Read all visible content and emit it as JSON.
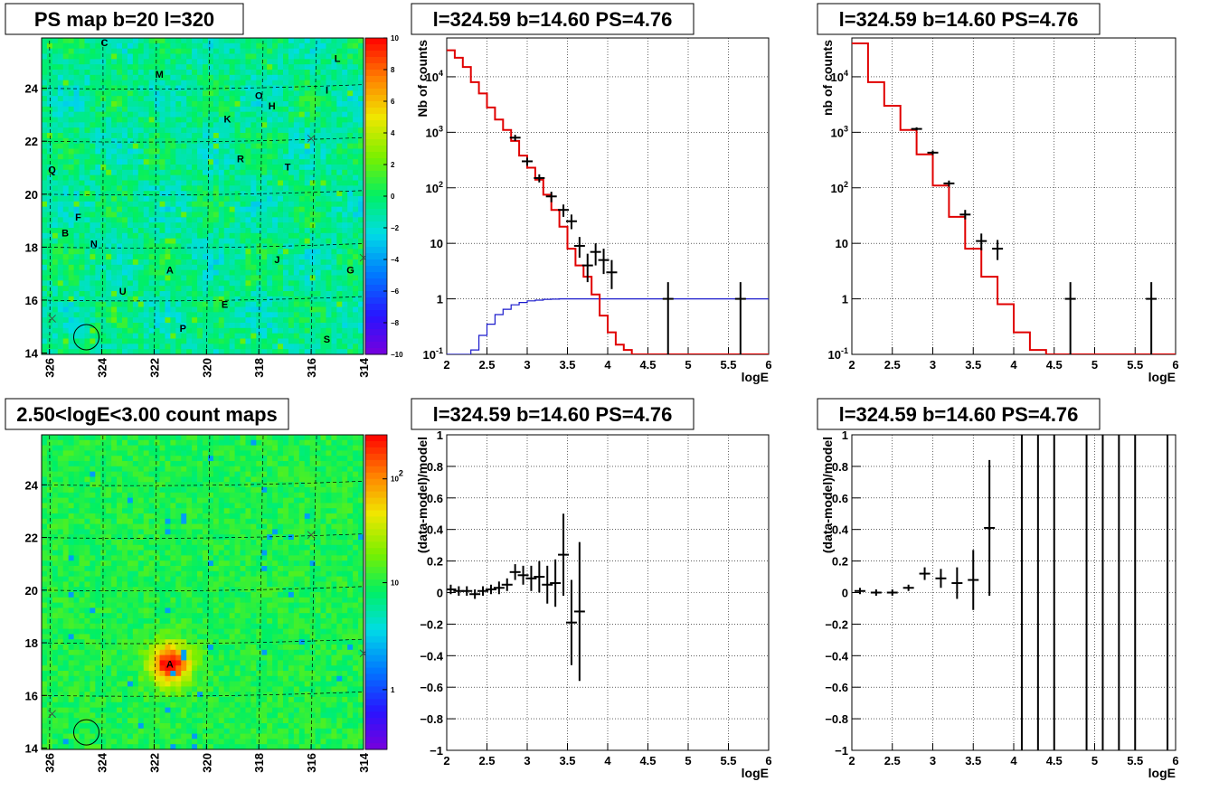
{
  "chart_data": [
    {
      "type": "heatmap",
      "title": "PS map b=20 l=320",
      "x_ticks": [
        "326",
        "324",
        "322",
        "320",
        "318",
        "316",
        "314"
      ],
      "y_ticks": [
        "14",
        "16",
        "18",
        "20",
        "22",
        "24"
      ],
      "zlim": [
        -10,
        10
      ],
      "colorbar_ticks": [
        "10",
        "8",
        "6",
        "4",
        "2",
        "0",
        "-2",
        "-4",
        "-6",
        "-8",
        "-10"
      ],
      "sources": [
        {
          "label": "C",
          "l": 323.9,
          "b": 25.6
        },
        {
          "label": "M",
          "l": 321.8,
          "b": 24.4
        },
        {
          "label": "L",
          "l": 315.0,
          "b": 25.0
        },
        {
          "label": "I",
          "l": 315.4,
          "b": 23.8
        },
        {
          "label": "O",
          "l": 318.0,
          "b": 23.6
        },
        {
          "label": "H",
          "l": 317.5,
          "b": 23.2
        },
        {
          "label": "K",
          "l": 319.2,
          "b": 22.7
        },
        {
          "label": "R",
          "l": 318.7,
          "b": 21.2
        },
        {
          "label": "T",
          "l": 316.9,
          "b": 20.9
        },
        {
          "label": "Q",
          "l": 325.9,
          "b": 20.8
        },
        {
          "label": "F",
          "l": 324.9,
          "b": 19.0
        },
        {
          "label": "B",
          "l": 325.4,
          "b": 18.4
        },
        {
          "label": "N",
          "l": 324.3,
          "b": 18.0
        },
        {
          "label": "J",
          "l": 317.3,
          "b": 17.4
        },
        {
          "label": "G",
          "l": 314.5,
          "b": 17.0
        },
        {
          "label": "A",
          "l": 321.4,
          "b": 17.0
        },
        {
          "label": "U",
          "l": 323.2,
          "b": 16.2
        },
        {
          "label": "E",
          "l": 319.3,
          "b": 15.7
        },
        {
          "label": "P",
          "l": 320.9,
          "b": 14.8
        },
        {
          "label": "S",
          "l": 315.4,
          "b": 14.4
        }
      ]
    },
    {
      "type": "line",
      "title": "l=324.59 b=14.60 PS=4.76",
      "xlabel": "logE",
      "ylabel": "Nb of counts",
      "yscale": "log",
      "xlim": [
        2,
        6
      ],
      "ylim": [
        0.1,
        50000
      ],
      "x_ticks": [
        "2",
        "2.5",
        "3",
        "3.5",
        "4",
        "4.5",
        "5",
        "5.5",
        "6"
      ],
      "y_ticks": [
        "10^-1",
        "1",
        "10",
        "10^2",
        "10^3",
        "10^4"
      ],
      "model_red": {
        "edges": [
          2.0,
          2.1,
          2.2,
          2.3,
          2.4,
          2.5,
          2.6,
          2.7,
          2.8,
          2.9,
          3.0,
          3.1,
          3.2,
          3.3,
          3.4,
          3.5,
          3.6,
          3.7,
          3.8,
          3.9,
          4.0,
          4.1,
          4.2,
          4.3,
          6.0
        ],
        "values": [
          30000,
          22000,
          15000,
          8000,
          5000,
          2800,
          1700,
          1100,
          700,
          380,
          230,
          140,
          75,
          40,
          20,
          8,
          4,
          2.5,
          1.2,
          0.5,
          0.25,
          0.15,
          0.12,
          0.1
        ]
      },
      "model_blue": {
        "edges": [
          2.0,
          2.3,
          2.4,
          2.5,
          2.6,
          2.7,
          2.8,
          2.9,
          3.0,
          3.1,
          3.2,
          3.3,
          3.4,
          3.5,
          6.0
        ],
        "values": [
          0.1,
          0.12,
          0.22,
          0.35,
          0.52,
          0.65,
          0.78,
          0.86,
          0.92,
          0.95,
          0.98,
          0.99,
          1.0,
          1.0
        ]
      },
      "data_points": [
        {
          "x": 2.85,
          "y": 800,
          "ylo": 700,
          "yhi": 900
        },
        {
          "x": 3.0,
          "y": 300,
          "ylo": 250,
          "yhi": 350
        },
        {
          "x": 3.15,
          "y": 150,
          "ylo": 125,
          "yhi": 175
        },
        {
          "x": 3.3,
          "y": 70,
          "ylo": 55,
          "yhi": 85
        },
        {
          "x": 3.45,
          "y": 40,
          "ylo": 30,
          "yhi": 50
        },
        {
          "x": 3.55,
          "y": 25,
          "ylo": 18,
          "yhi": 33
        },
        {
          "x": 3.65,
          "y": 9,
          "ylo": 5.5,
          "yhi": 13
        },
        {
          "x": 3.75,
          "y": 4,
          "ylo": 2,
          "yhi": 6.5
        },
        {
          "x": 3.85,
          "y": 7,
          "ylo": 4,
          "yhi": 10
        },
        {
          "x": 3.95,
          "y": 5,
          "ylo": 2.8,
          "yhi": 8
        },
        {
          "x": 4.05,
          "y": 3,
          "ylo": 1.5,
          "yhi": 5
        },
        {
          "x": 4.75,
          "y": 1,
          "ylo": 0.1,
          "yhi": 2
        },
        {
          "x": 5.65,
          "y": 1,
          "ylo": 0.1,
          "yhi": 2
        }
      ]
    },
    {
      "type": "line",
      "title": "l=324.59 b=14.60 PS=4.76",
      "xlabel": "logE",
      "ylabel": "nb of counts",
      "yscale": "log",
      "xlim": [
        2,
        6
      ],
      "ylim": [
        0.1,
        50000
      ],
      "x_ticks": [
        "2",
        "2.5",
        "3",
        "3.5",
        "4",
        "4.5",
        "5",
        "5.5",
        "6"
      ],
      "y_ticks": [
        "10^-1",
        "1",
        "10",
        "10^2",
        "10^3",
        "10^4"
      ],
      "model_red": {
        "edges": [
          2.0,
          2.2,
          2.4,
          2.6,
          2.8,
          3.0,
          3.2,
          3.4,
          3.6,
          3.8,
          4.0,
          4.2,
          4.4,
          6.0
        ],
        "values": [
          40000,
          8000,
          3000,
          1100,
          400,
          110,
          30,
          8,
          2.5,
          0.8,
          0.25,
          0.12,
          0.1
        ]
      },
      "data_points": [
        {
          "x": 2.8,
          "y": 1150,
          "ylo": 1080,
          "yhi": 1230
        },
        {
          "x": 3.0,
          "y": 430,
          "ylo": 390,
          "yhi": 470
        },
        {
          "x": 3.2,
          "y": 120,
          "ylo": 105,
          "yhi": 135
        },
        {
          "x": 3.4,
          "y": 33,
          "ylo": 27,
          "yhi": 40
        },
        {
          "x": 3.6,
          "y": 11,
          "ylo": 7.5,
          "yhi": 15
        },
        {
          "x": 3.8,
          "y": 8,
          "ylo": 5,
          "yhi": 11.5
        },
        {
          "x": 4.7,
          "y": 1,
          "ylo": 0.1,
          "yhi": 2
        },
        {
          "x": 5.7,
          "y": 1,
          "ylo": 0.1,
          "yhi": 2
        }
      ]
    },
    {
      "type": "heatmap",
      "title": "2.50<logE<3.00 count maps",
      "x_ticks": [
        "326",
        "324",
        "322",
        "320",
        "318",
        "316",
        "314"
      ],
      "y_ticks": [
        "14",
        "16",
        "18",
        "20",
        "22",
        "24"
      ],
      "zscale": "log",
      "colorbar_ticks": [
        "10^2",
        "10",
        "1"
      ],
      "hotspot": {
        "label": "A",
        "l": 321.4,
        "b": 17.2
      }
    },
    {
      "type": "scatter",
      "title": "l=324.59 b=14.60 PS=4.76",
      "xlabel": "logE",
      "ylabel": "(data-model)/model",
      "xlim": [
        2,
        6
      ],
      "ylim": [
        -1,
        1
      ],
      "x_ticks": [
        "2",
        "2.5",
        "3",
        "3.5",
        "4",
        "4.5",
        "5",
        "5.5",
        "6"
      ],
      "y_ticks": [
        "-1",
        "-0.8",
        "-0.6",
        "-0.4",
        "-0.2",
        "0",
        "0.2",
        "0.4",
        "0.6",
        "0.8",
        "1"
      ],
      "data_points": [
        {
          "x": 2.05,
          "y": 0.02,
          "err": 0.03
        },
        {
          "x": 2.15,
          "y": 0.01,
          "err": 0.03
        },
        {
          "x": 2.25,
          "y": 0.01,
          "err": 0.03
        },
        {
          "x": 2.35,
          "y": -0.01,
          "err": 0.03
        },
        {
          "x": 2.45,
          "y": 0.01,
          "err": 0.03
        },
        {
          "x": 2.55,
          "y": 0.02,
          "err": 0.03
        },
        {
          "x": 2.65,
          "y": 0.03,
          "err": 0.04
        },
        {
          "x": 2.75,
          "y": 0.05,
          "err": 0.04
        },
        {
          "x": 2.85,
          "y": 0.13,
          "err": 0.05
        },
        {
          "x": 2.95,
          "y": 0.11,
          "err": 0.06
        },
        {
          "x": 3.05,
          "y": 0.09,
          "err": 0.08
        },
        {
          "x": 3.15,
          "y": 0.1,
          "err": 0.1
        },
        {
          "x": 3.25,
          "y": 0.05,
          "err": 0.12
        },
        {
          "x": 3.35,
          "y": 0.06,
          "err": 0.15
        },
        {
          "x": 3.45,
          "y": 0.24,
          "err": 0.26
        },
        {
          "x": 3.55,
          "y": -0.19,
          "err": 0.27
        },
        {
          "x": 3.65,
          "y": -0.12,
          "err": 0.44
        }
      ]
    },
    {
      "type": "scatter",
      "title": "l=324.59 b=14.60 PS=4.76",
      "xlabel": "logE",
      "ylabel": "(data-model)/model",
      "xlim": [
        2,
        6
      ],
      "ylim": [
        -1,
        1
      ],
      "x_ticks": [
        "2",
        "2.5",
        "3",
        "3.5",
        "4",
        "4.5",
        "5",
        "5.5",
        "6"
      ],
      "y_ticks": [
        "-1",
        "-0.8",
        "-0.6",
        "-0.4",
        "-0.2",
        "0",
        "0.2",
        "0.4",
        "0.6",
        "0.8",
        "1"
      ],
      "data_points": [
        {
          "x": 2.1,
          "y": 0.01,
          "err": 0.02
        },
        {
          "x": 2.3,
          "y": 0.0,
          "err": 0.02
        },
        {
          "x": 2.5,
          "y": 0.0,
          "err": 0.02
        },
        {
          "x": 2.7,
          "y": 0.03,
          "err": 0.02
        },
        {
          "x": 2.9,
          "y": 0.12,
          "err": 0.04
        },
        {
          "x": 3.1,
          "y": 0.09,
          "err": 0.06
        },
        {
          "x": 3.3,
          "y": 0.06,
          "err": 0.1
        },
        {
          "x": 3.5,
          "y": 0.08,
          "err": 0.19
        },
        {
          "x": 3.7,
          "y": 0.41,
          "err": 0.43
        }
      ],
      "full_range_bars_x": [
        4.1,
        4.3,
        4.5,
        4.9,
        5.1,
        5.3,
        5.5,
        5.9
      ]
    }
  ]
}
